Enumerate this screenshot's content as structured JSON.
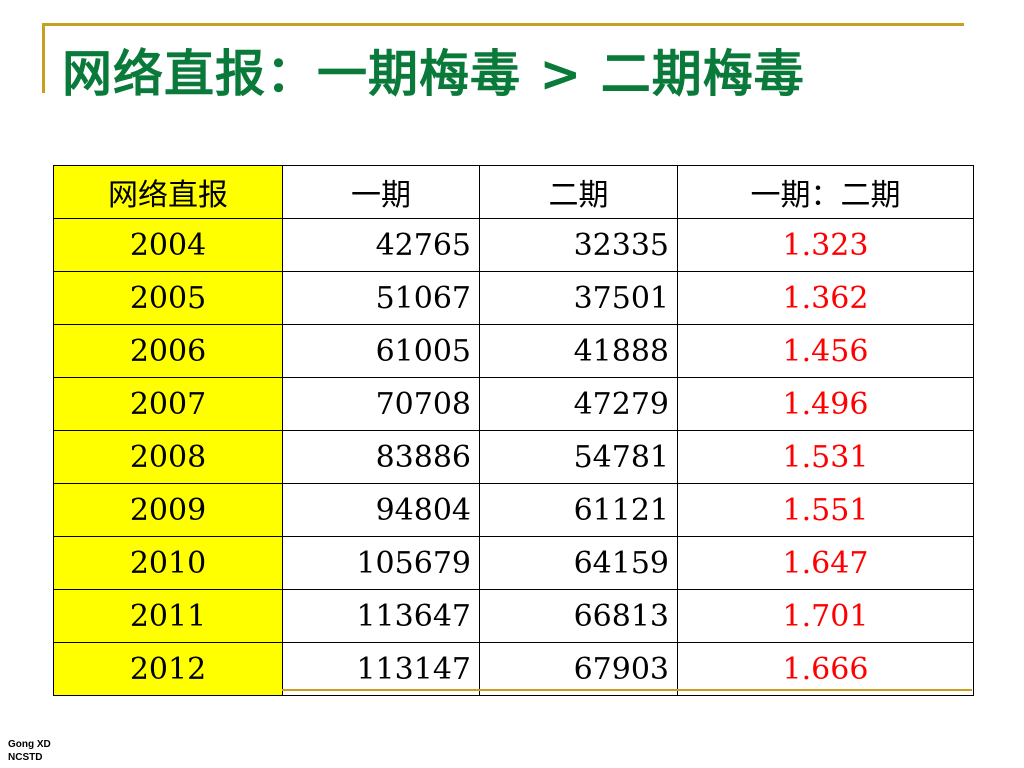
{
  "title": "网络直报：一期梅毒 > 二期梅毒",
  "table": {
    "headers": [
      "网络直报",
      "一期",
      "二期",
      "一期：二期"
    ],
    "rows": [
      [
        "2004",
        "42765",
        "32335",
        "1.323"
      ],
      [
        "2005",
        "51067",
        "37501",
        "1.362"
      ],
      [
        "2006",
        "61005",
        "41888",
        "1.456"
      ],
      [
        "2007",
        "70708",
        "47279",
        "1.496"
      ],
      [
        "2008",
        "83886",
        "54781",
        "1.531"
      ],
      [
        "2009",
        "94804",
        "61121",
        "1.551"
      ],
      [
        "2010",
        "105679",
        "64159",
        "1.647"
      ],
      [
        "2011",
        "113647",
        "66813",
        "1.701"
      ],
      [
        "2012",
        "113147",
        "67903",
        "1.666"
      ]
    ]
  },
  "footer": {
    "line1": "Gong XD",
    "line2": "NCSTD"
  },
  "colors": {
    "title": "#0a7a3a",
    "year_cell_bg": "#ffff00",
    "ratio_text": "#ff0000",
    "decoration_line": "#c8a020"
  }
}
